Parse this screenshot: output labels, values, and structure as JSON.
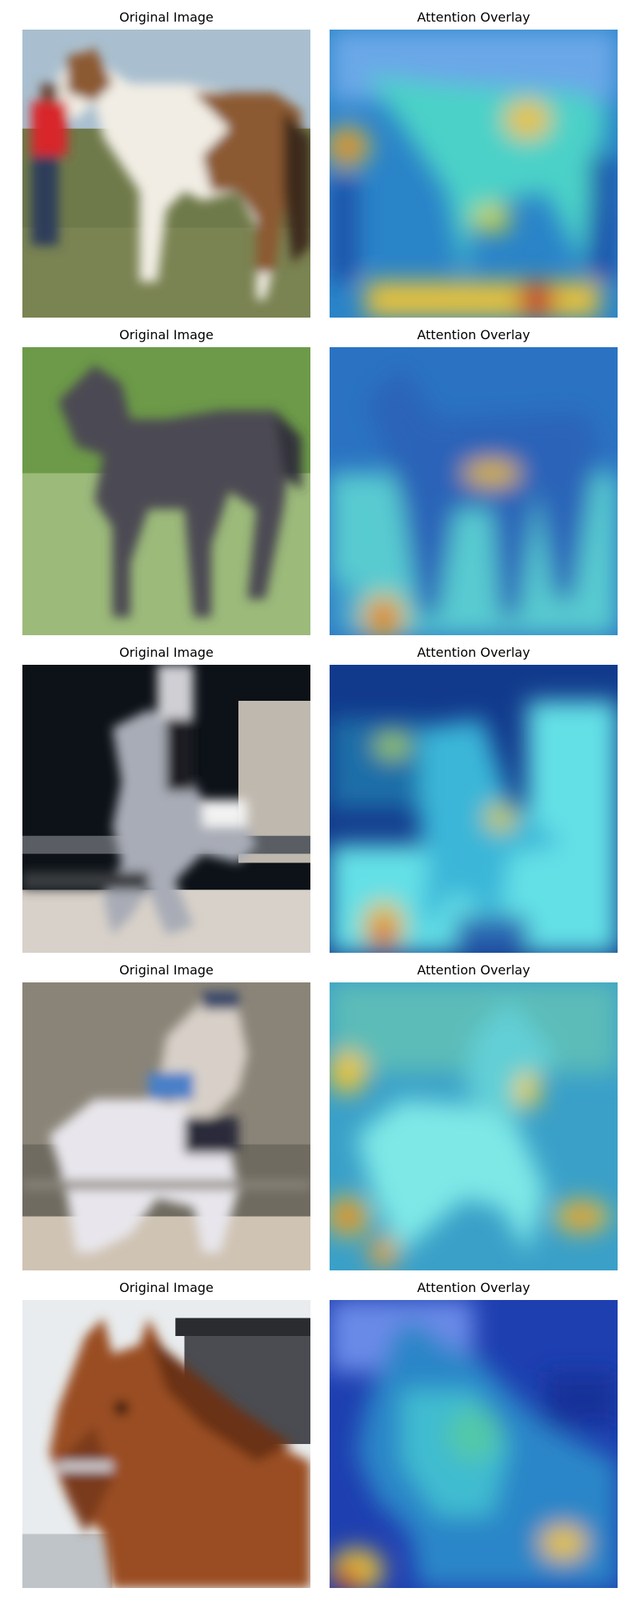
{
  "rows": [
    {
      "original_title": "Original Image",
      "overlay_title": "Attention Overlay",
      "original": {
        "description": "brown and white paint horse standing on grass, person in red shirt holding it on the left",
        "colors": {
          "sky": "#a9bfcf",
          "ground": "#6f7a4a",
          "horse_white": "#f1ede4",
          "horse_brown": "#8c5a32",
          "person_shirt": "#d8282a",
          "person_pants": "#2e3c5a"
        }
      },
      "overlay": {
        "colors": {
          "base": "#2a84c8",
          "mid": "#4bd1c8",
          "hot": "#e8c23a",
          "hottest": "#cc3a22"
        }
      }
    },
    {
      "original_title": "Original Image",
      "overlay_title": "Attention Overlay",
      "original": {
        "description": "dark grey foal standing on green grass",
        "colors": {
          "background": "#6c9a48",
          "ground": "#9cba7a",
          "horse": "#4b4852"
        }
      },
      "overlay": {
        "colors": {
          "base": "#2b73c2",
          "mid": "#58cbd0",
          "hot": "#d8b42c",
          "hottest": "#cc3322"
        }
      }
    },
    {
      "original_title": "Original Image",
      "overlay_title": "Attention Overlay",
      "original": {
        "description": "rider on grey horse jumping in arena, dark background",
        "colors": {
          "background": "#0d1218",
          "arena": "#d8d1c9",
          "horse": "#a8acb6",
          "rider": "#cfcfd4"
        }
      },
      "overlay": {
        "colors": {
          "base": "#123a8c",
          "mid": "#63e0e6",
          "hot": "#e0c040",
          "hottest": "#d84030"
        }
      }
    },
    {
      "original_title": "Original Image",
      "overlay_title": "Attention Overlay",
      "original": {
        "description": "rider on white horse in wooded paddock",
        "colors": {
          "background": "#6f6b60",
          "ground": "#cfc3b3",
          "horse": "#e8e6ec",
          "rider": "#d8d0c8",
          "saddle": "#2a2c3a"
        }
      },
      "overlay": {
        "colors": {
          "base": "#3aa0c8",
          "mid": "#7ee8e6",
          "hot": "#e8c43a",
          "hottest": "#cc3a22"
        }
      }
    },
    {
      "original_title": "Original Image",
      "overlay_title": "Attention Overlay",
      "original": {
        "description": "close-up of chestnut horse head with bridle, building in background",
        "colors": {
          "sky": "#e8ecee",
          "building": "#4a4c52",
          "horse": "#9a4e22",
          "mane": "#6a3214"
        }
      },
      "overlay": {
        "colors": {
          "base": "#1e3fb0",
          "mid": "#3fbcd0",
          "hot": "#e6c23a",
          "hottest": "#cc3322"
        }
      }
    }
  ]
}
